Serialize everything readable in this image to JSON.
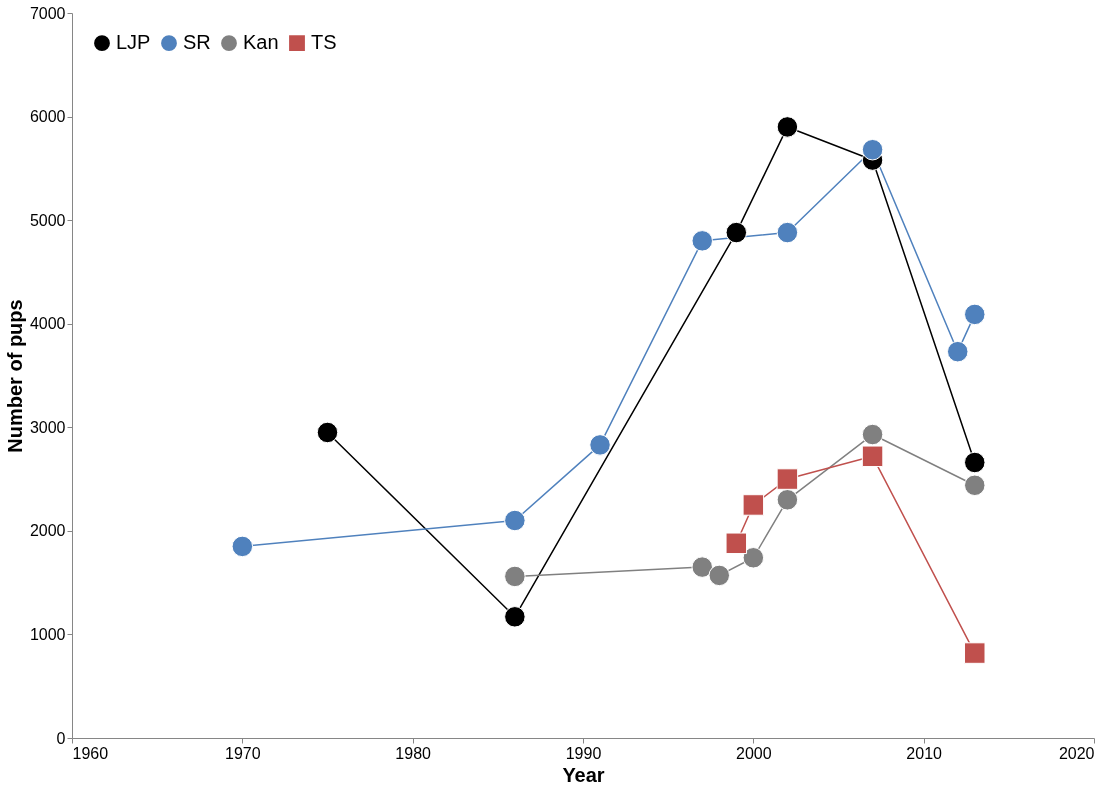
{
  "chart_data": {
    "type": "line",
    "xlabel": "Year",
    "ylabel": "Number of pups",
    "xlim": [
      1960,
      2020
    ],
    "xticks": [
      1960,
      1970,
      1980,
      1990,
      2000,
      2010,
      2020
    ],
    "ylim": [
      0,
      7000
    ],
    "yticks": [
      0,
      1000,
      2000,
      3000,
      4000,
      5000,
      6000,
      7000
    ],
    "grid": false,
    "legend": "top left",
    "marker": "circle",
    "series": [
      {
        "name": "LJP",
        "color": "#000000",
        "x": [
          1975,
          1986,
          1999,
          2002,
          2007,
          2013
        ],
        "values": [
          2950,
          1170,
          4880,
          5900,
          5580,
          2660
        ]
      },
      {
        "name": "SR",
        "color": "#4f81bd",
        "x": [
          1970,
          1986,
          1991,
          1997,
          2002,
          2007,
          2012,
          2013
        ],
        "values": [
          1850,
          2100,
          2830,
          4800,
          4880,
          5680,
          3730,
          4090
        ]
      },
      {
        "name": "Kan",
        "color": "#808080",
        "x": [
          1986,
          1997,
          1998,
          2000,
          2002,
          2007,
          2013
        ],
        "values": [
          1560,
          1650,
          1570,
          1740,
          2300,
          2930,
          2440
        ]
      },
      {
        "name": "TS",
        "color": "#c0504d",
        "marker": "square",
        "x": [
          1999,
          2000,
          2002,
          2007,
          2013
        ],
        "values": [
          1880,
          2250,
          2500,
          2720,
          820
        ]
      }
    ]
  }
}
